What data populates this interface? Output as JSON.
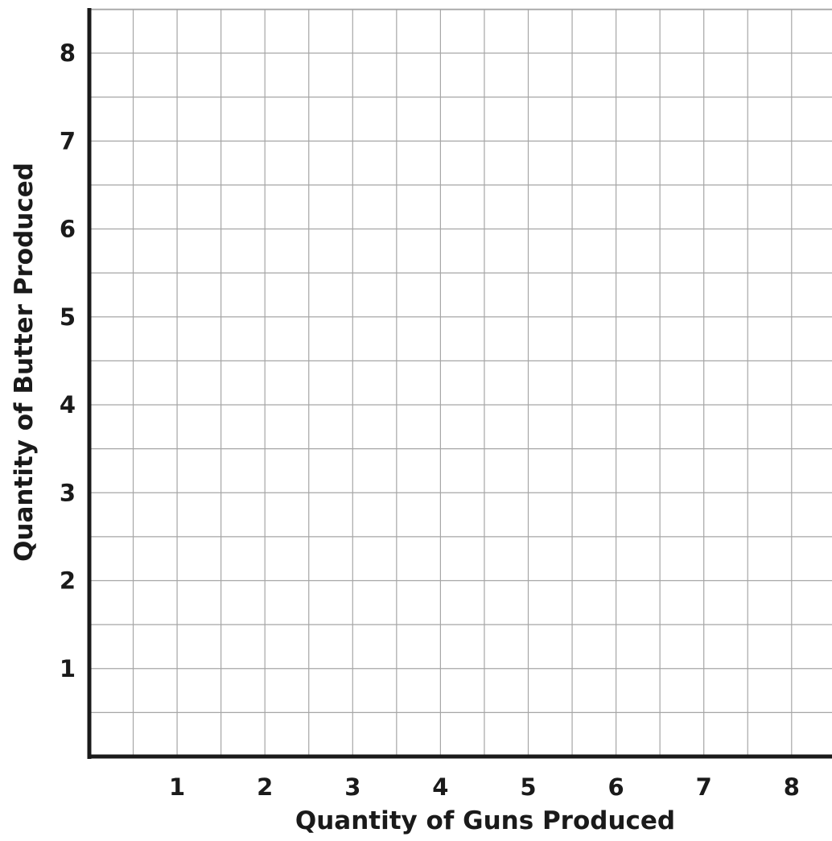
{
  "chart_data": {
    "type": "line",
    "title": "",
    "xlabel": "Quantity of Guns Produced",
    "ylabel": "Quantity of Butter Produced",
    "xlim": [
      0,
      8.5
    ],
    "ylim": [
      0,
      8.5
    ],
    "x_ticks": [
      1,
      2,
      3,
      4,
      5,
      6,
      7,
      8
    ],
    "y_ticks": [
      1,
      2,
      3,
      4,
      5,
      6,
      7,
      8
    ],
    "x_tick_labels": [
      "1",
      "2",
      "3",
      "4",
      "5",
      "6",
      "7",
      "8"
    ],
    "y_tick_labels": [
      "1",
      "2",
      "3",
      "4",
      "5",
      "6",
      "7",
      "8"
    ],
    "grid": true,
    "grid_step": 0.5,
    "series": []
  },
  "colors": {
    "axis": "#1a1a1a",
    "grid": "#a6a6a6",
    "text": "#1a1a1a",
    "background": "#ffffff"
  }
}
